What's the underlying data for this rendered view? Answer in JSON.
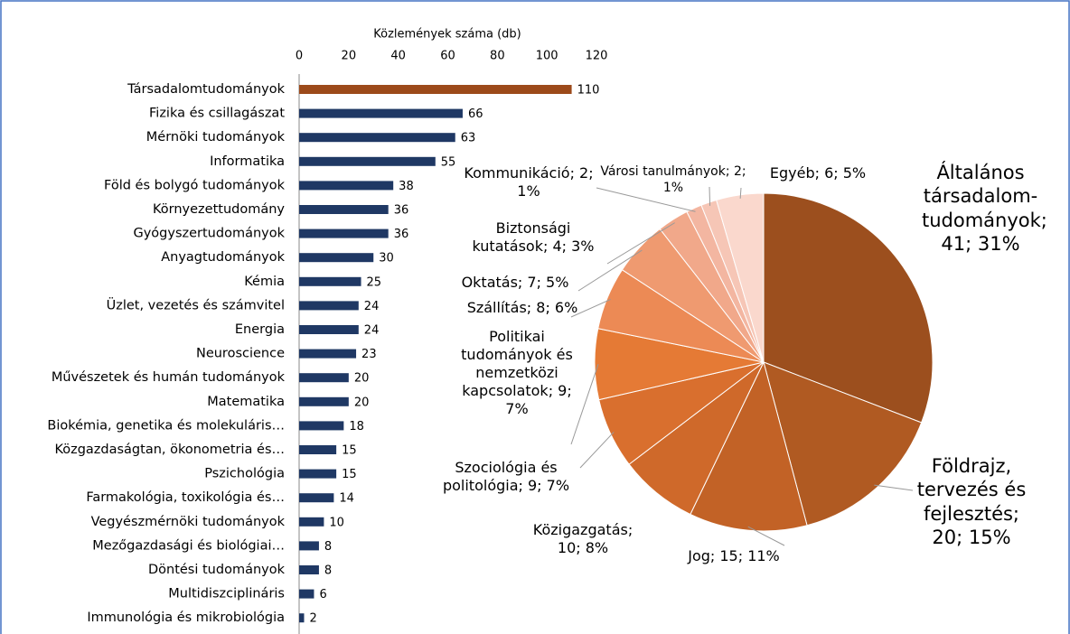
{
  "chart_data": [
    {
      "type": "bar",
      "orientation": "horizontal",
      "x_label": "Közlemények száma (db)",
      "categories": [
        "Társadalomtudományok",
        "Fizika és csillagászat",
        "Mérnöki tudományok",
        "Informatika",
        "Föld és bolygó tudományok",
        "Környezettudomány",
        "Gyógyszertudományok",
        "Anyagtudományok",
        "Kémia",
        "Üzlet, vezetés és számvitel",
        "Energia",
        "Neuroscience",
        "Művészetek és humán tudományok",
        "Matematika",
        "Biokémia, genetika és molekuláris…",
        "Közgazdaságtan, ökonometria és…",
        "Pszichológia",
        "Farmakológia, toxikológia és…",
        "Vegyészmérnöki tudományok",
        "Mezőgazdasági és biológiai…",
        "Döntési tudományok",
        "Multidiszciplináris",
        "Immunológia és mikrobiológia"
      ],
      "values": [
        110,
        66,
        63,
        55,
        38,
        36,
        36,
        30,
        25,
        24,
        24,
        23,
        20,
        20,
        18,
        15,
        15,
        14,
        10,
        8,
        8,
        6,
        2
      ],
      "colors": [
        "#9c4a1a",
        "#1f3864",
        "#1f3864",
        "#1f3864",
        "#1f3864",
        "#1f3864",
        "#1f3864",
        "#1f3864",
        "#1f3864",
        "#1f3864",
        "#1f3864",
        "#1f3864",
        "#1f3864",
        "#1f3864",
        "#1f3864",
        "#1f3864",
        "#1f3864",
        "#1f3864",
        "#1f3864",
        "#1f3864",
        "#1f3864",
        "#1f3864",
        "#1f3864"
      ],
      "xlim": [
        0,
        120
      ],
      "xticks": [
        0,
        20,
        40,
        60,
        80,
        100,
        120
      ],
      "grid": false
    },
    {
      "type": "pie",
      "labels": [
        "Általános társadalom-tudományok; 41; 31%",
        "Földrajz, tervezés és fejlesztés; 20; 15%",
        "Jog; 15; 11%",
        "Közigazgatás; 10; 8%",
        "Szociológia és politológia; 9; 7%",
        "Politikai tudományok és nemzetközi kapcsolatok; 9; 7%",
        "Szállítás; 8; 6%",
        "Oktatás; 7; 5%",
        "Biztonsági kutatások; 4; 3%",
        "Kommunikáció; 2; 1%",
        "Városi tanulmányok; 2; 1%",
        "Egyéb; 6; 5%"
      ],
      "values": [
        41,
        20,
        15,
        10,
        9,
        9,
        8,
        7,
        4,
        2,
        2,
        6
      ],
      "colors": [
        "#9c4f1e",
        "#b05a22",
        "#c26226",
        "#cf692a",
        "#d96f2e",
        "#e57a35",
        "#ec8a55",
        "#ef9a70",
        "#f1a88a",
        "#f3b6a1",
        "#f6c6b6",
        "#fad8cd"
      ]
    }
  ]
}
